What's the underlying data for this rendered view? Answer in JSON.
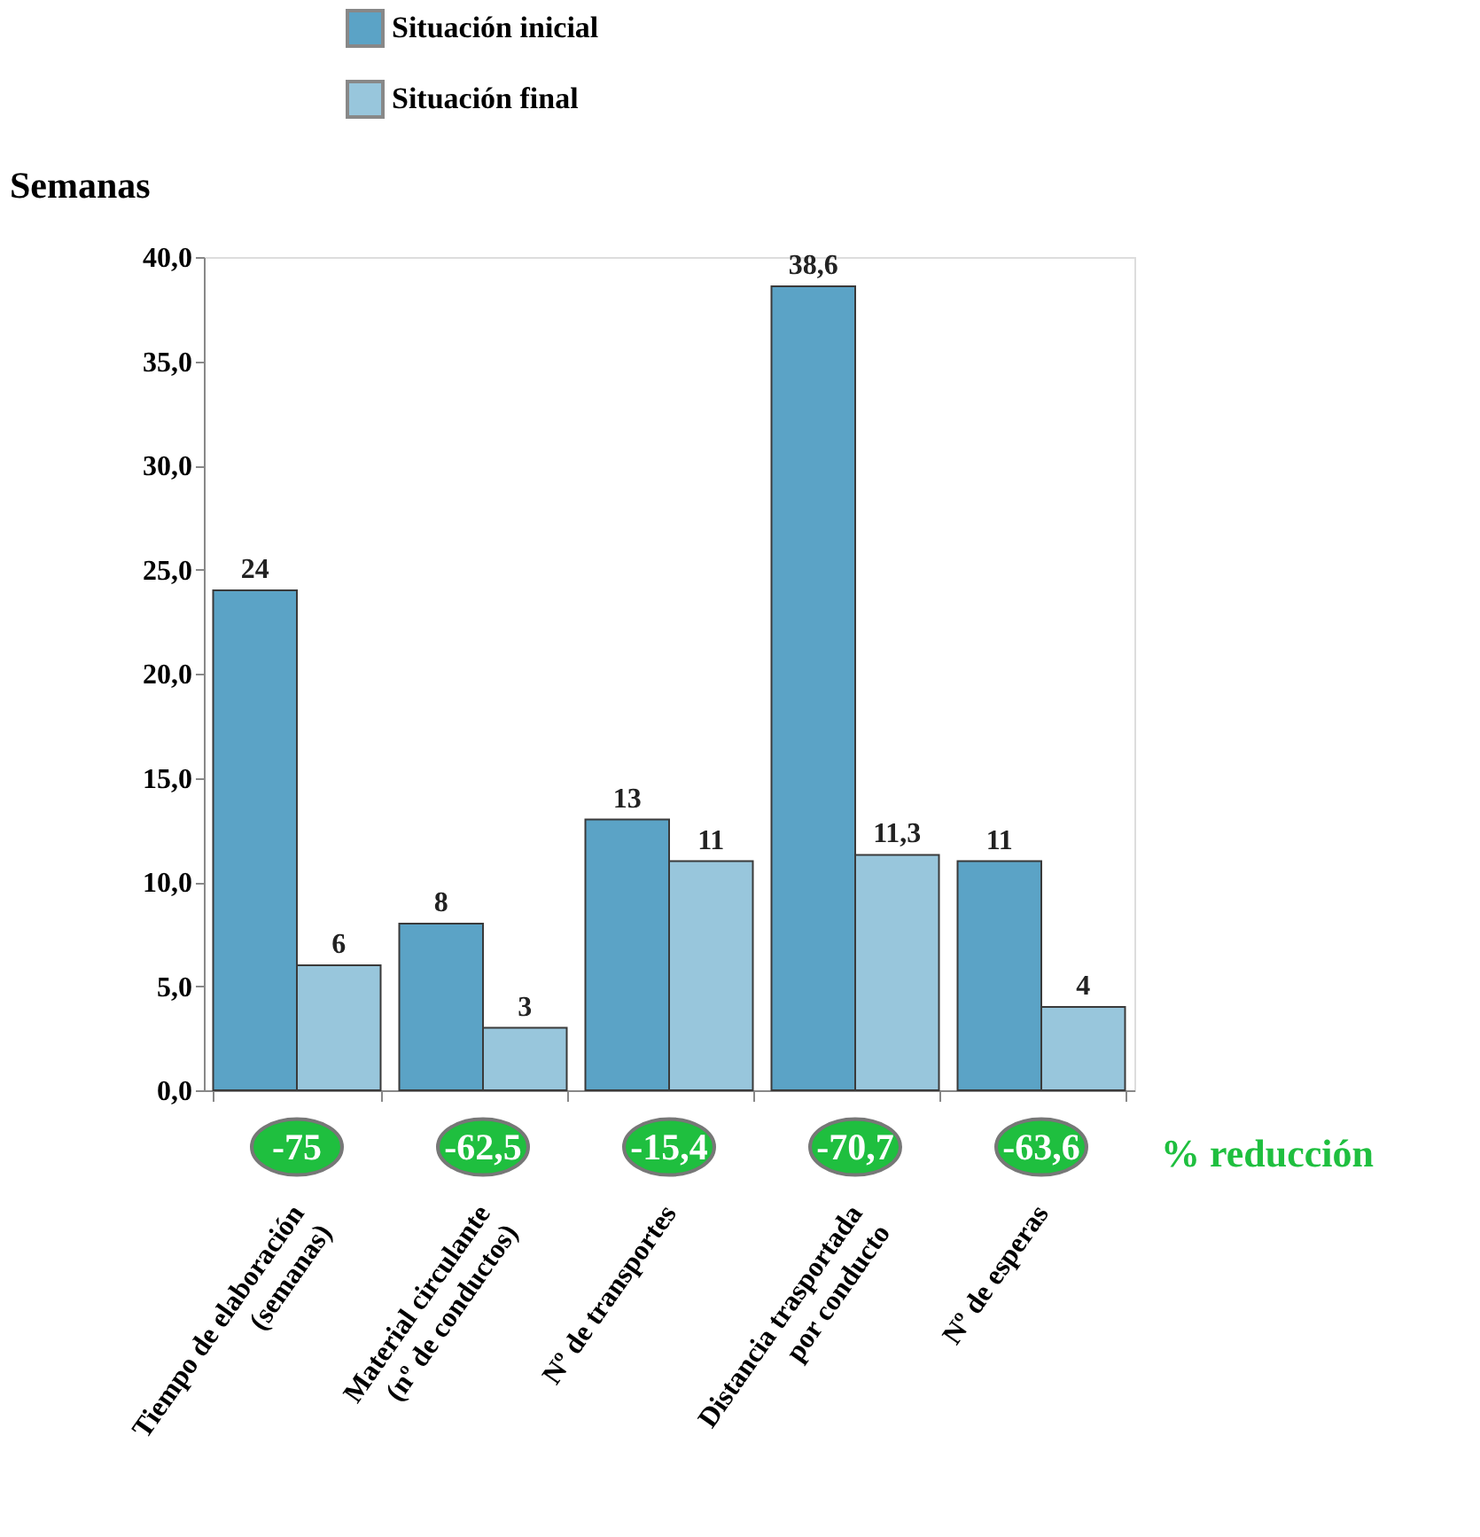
{
  "chart_data": {
    "type": "bar",
    "categories": [
      "Tiempo de elaboración\n(semanas)",
      "Material circulante\n(nº de conductos)",
      "Nº de transportes",
      "Distancia trasportada\npor conducto",
      "Nº de esperas"
    ],
    "ylabel": "Semanas",
    "ylim": [
      0,
      40
    ],
    "yticks": [
      {
        "value": 0,
        "label": "0,0"
      },
      {
        "value": 5,
        "label": "5,0"
      },
      {
        "value": 10,
        "label": "10,0"
      },
      {
        "value": 15,
        "label": "15,0"
      },
      {
        "value": 20,
        "label": "20,0"
      },
      {
        "value": 25,
        "label": "25,0"
      },
      {
        "value": 30,
        "label": "30,0"
      },
      {
        "value": 35,
        "label": "35,0"
      },
      {
        "value": 40,
        "label": "40,0"
      }
    ],
    "series": [
      {
        "name": "Situación inicial",
        "color": "#5ba3c6",
        "values": [
          24,
          8,
          13,
          38.6,
          11
        ],
        "value_labels": [
          "24",
          "8",
          "13",
          "38,6",
          "11"
        ]
      },
      {
        "name": "Situación final",
        "color": "#98c6dc",
        "values": [
          6,
          3,
          11,
          11.3,
          4
        ],
        "value_labels": [
          "6",
          "3",
          "11",
          "11,3",
          "4"
        ]
      }
    ],
    "annotations": [
      "-75",
      "-62,5",
      "-15,4",
      "-70,7",
      "-63,6",
      "% reducción"
    ],
    "legend": "top",
    "grid": false
  }
}
